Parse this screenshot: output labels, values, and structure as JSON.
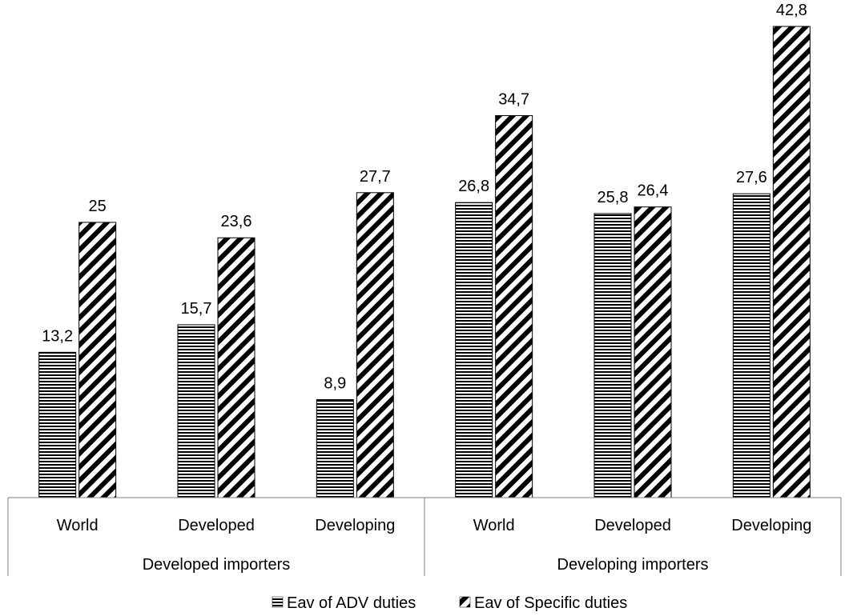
{
  "chart_data": {
    "type": "bar",
    "groups": [
      {
        "label": "Developed importers",
        "categories": [
          "World",
          "Developed",
          "Developing"
        ]
      },
      {
        "label": "Developing importers",
        "categories": [
          "World",
          "Developed",
          "Developing"
        ]
      }
    ],
    "series": [
      {
        "name": "Eav of ADV duties",
        "pattern": "horizontal-stripes",
        "values": [
          13.2,
          15.7,
          8.9,
          26.8,
          25.8,
          27.6
        ],
        "labels": [
          "13,2",
          "15,7",
          "8,9",
          "26,8",
          "25,8",
          "27,6"
        ]
      },
      {
        "name": "Eav of Specific duties",
        "pattern": "diagonal-stripes",
        "values": [
          25,
          23.6,
          27.7,
          34.7,
          26.4,
          42.8
        ],
        "labels": [
          "25",
          "23,6",
          "27,7",
          "34,7",
          "26,4",
          "42,8"
        ]
      }
    ],
    "ylim": [
      0,
      45
    ],
    "grid": false,
    "legend_position": "bottom",
    "colors": {
      "bar": "#000000",
      "background": "#ffffff",
      "axis": "#808080"
    }
  }
}
